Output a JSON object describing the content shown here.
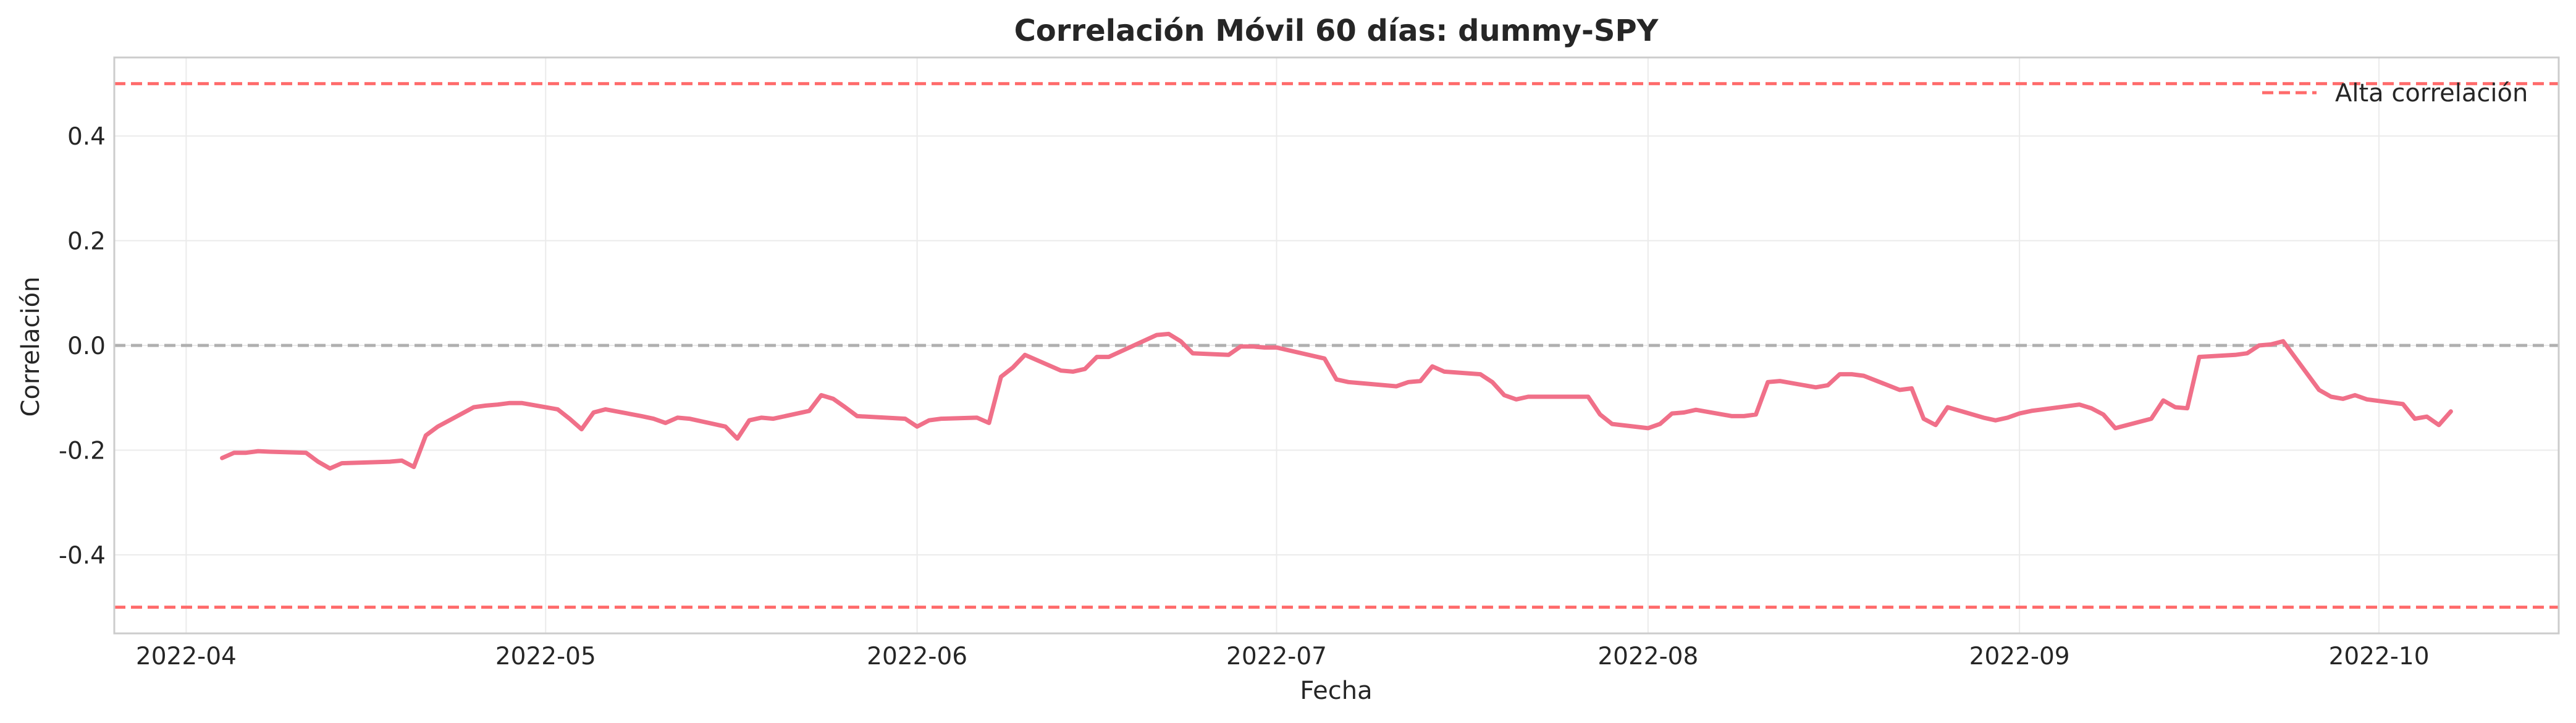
{
  "chart_data": {
    "type": "line",
    "title": "Correlación Móvil 60 días: dummy-SPY",
    "xlabel": "Fecha",
    "ylabel": "Correlación",
    "xlim": [
      "2022-03-26",
      "2022-10-16"
    ],
    "ylim": [
      -0.55,
      0.55
    ],
    "x_ticks": [
      "2022-04",
      "2022-05",
      "2022-06",
      "2022-07",
      "2022-08",
      "2022-09",
      "2022-10"
    ],
    "y_ticks": [
      0.4,
      0.2,
      0.0,
      -0.2,
      -0.4
    ],
    "y_tick_labels": [
      "0.4",
      "0.2",
      "0.0",
      "-0.2",
      "-0.4"
    ],
    "grid": true,
    "legend_position": "top-right",
    "reference_lines": [
      {
        "name": "Alta correlación",
        "y": 0.5,
        "color": "#ff6b6b",
        "style": "dashed",
        "in_legend": true
      },
      {
        "y": -0.5,
        "color": "#ff6b6b",
        "style": "dashed",
        "in_legend": false
      },
      {
        "y": 0.0,
        "color": "#b0b0b0",
        "style": "dashed",
        "in_legend": false
      }
    ],
    "series": [
      {
        "color": "#f07089",
        "x": [
          "2022-04-04",
          "2022-04-05",
          "2022-04-06",
          "2022-04-07",
          "2022-04-08",
          "2022-04-11",
          "2022-04-12",
          "2022-04-13",
          "2022-04-14",
          "2022-04-18",
          "2022-04-19",
          "2022-04-20",
          "2022-04-21",
          "2022-04-22",
          "2022-04-25",
          "2022-04-26",
          "2022-04-27",
          "2022-04-28",
          "2022-04-29",
          "2022-05-02",
          "2022-05-03",
          "2022-05-04",
          "2022-05-05",
          "2022-05-06",
          "2022-05-09",
          "2022-05-10",
          "2022-05-11",
          "2022-05-12",
          "2022-05-13",
          "2022-05-16",
          "2022-05-17",
          "2022-05-18",
          "2022-05-19",
          "2022-05-20",
          "2022-05-23",
          "2022-05-24",
          "2022-05-25",
          "2022-05-26",
          "2022-05-27",
          "2022-05-31",
          "2022-06-01",
          "2022-06-02",
          "2022-06-03",
          "2022-06-06",
          "2022-06-07",
          "2022-06-08",
          "2022-06-09",
          "2022-06-10",
          "2022-06-13",
          "2022-06-14",
          "2022-06-15",
          "2022-06-16",
          "2022-06-17",
          "2022-06-21",
          "2022-06-22",
          "2022-06-23",
          "2022-06-24",
          "2022-06-27",
          "2022-06-28",
          "2022-06-29",
          "2022-06-30",
          "2022-07-01",
          "2022-07-05",
          "2022-07-06",
          "2022-07-07",
          "2022-07-08",
          "2022-07-11",
          "2022-07-12",
          "2022-07-13",
          "2022-07-14",
          "2022-07-15",
          "2022-07-18",
          "2022-07-19",
          "2022-07-20",
          "2022-07-21",
          "2022-07-22",
          "2022-07-25",
          "2022-07-26",
          "2022-07-27",
          "2022-07-28",
          "2022-07-29",
          "2022-08-01",
          "2022-08-02",
          "2022-08-03",
          "2022-08-04",
          "2022-08-05",
          "2022-08-08",
          "2022-08-09",
          "2022-08-10",
          "2022-08-11",
          "2022-08-12",
          "2022-08-15",
          "2022-08-16",
          "2022-08-17",
          "2022-08-18",
          "2022-08-19",
          "2022-08-22",
          "2022-08-23",
          "2022-08-24",
          "2022-08-25",
          "2022-08-26",
          "2022-08-29",
          "2022-08-30",
          "2022-08-31",
          "2022-09-01",
          "2022-09-02",
          "2022-09-06",
          "2022-09-07",
          "2022-09-08",
          "2022-09-09",
          "2022-09-12",
          "2022-09-13",
          "2022-09-14",
          "2022-09-15",
          "2022-09-16",
          "2022-09-19",
          "2022-09-20",
          "2022-09-21",
          "2022-09-22",
          "2022-09-23",
          "2022-09-26",
          "2022-09-27",
          "2022-09-28",
          "2022-09-29",
          "2022-09-30",
          "2022-10-03",
          "2022-10-04",
          "2022-10-05",
          "2022-10-06",
          "2022-10-07"
        ],
        "y": [
          -0.215,
          -0.205,
          -0.205,
          -0.202,
          -0.203,
          -0.205,
          -0.222,
          -0.235,
          -0.225,
          -0.222,
          -0.22,
          -0.232,
          -0.172,
          -0.155,
          -0.118,
          -0.115,
          -0.113,
          -0.11,
          -0.11,
          -0.122,
          -0.14,
          -0.16,
          -0.128,
          -0.122,
          -0.135,
          -0.14,
          -0.148,
          -0.138,
          -0.14,
          -0.155,
          -0.178,
          -0.143,
          -0.138,
          -0.14,
          -0.125,
          -0.095,
          -0.102,
          -0.118,
          -0.135,
          -0.14,
          -0.155,
          -0.143,
          -0.14,
          -0.138,
          -0.148,
          -0.06,
          -0.042,
          -0.018,
          -0.048,
          -0.05,
          -0.045,
          -0.022,
          -0.022,
          0.02,
          0.022,
          0.008,
          -0.015,
          -0.018,
          -0.002,
          -0.002,
          -0.004,
          -0.004,
          -0.025,
          -0.065,
          -0.07,
          -0.072,
          -0.078,
          -0.07,
          -0.068,
          -0.04,
          -0.05,
          -0.055,
          -0.07,
          -0.095,
          -0.103,
          -0.098,
          -0.098,
          -0.098,
          -0.098,
          -0.132,
          -0.15,
          -0.158,
          -0.15,
          -0.13,
          -0.128,
          -0.123,
          -0.135,
          -0.135,
          -0.132,
          -0.07,
          -0.068,
          -0.08,
          -0.076,
          -0.055,
          -0.055,
          -0.058,
          -0.085,
          -0.082,
          -0.14,
          -0.152,
          -0.118,
          -0.138,
          -0.143,
          -0.138,
          -0.13,
          -0.125,
          -0.113,
          -0.12,
          -0.132,
          -0.158,
          -0.14,
          -0.105,
          -0.118,
          -0.12,
          -0.022,
          -0.018,
          -0.015,
          0.0,
          0.002,
          0.008,
          -0.085,
          -0.098,
          -0.102,
          -0.095,
          -0.103,
          -0.112,
          -0.14,
          -0.136,
          -0.152,
          -0.126
        ]
      }
    ]
  }
}
